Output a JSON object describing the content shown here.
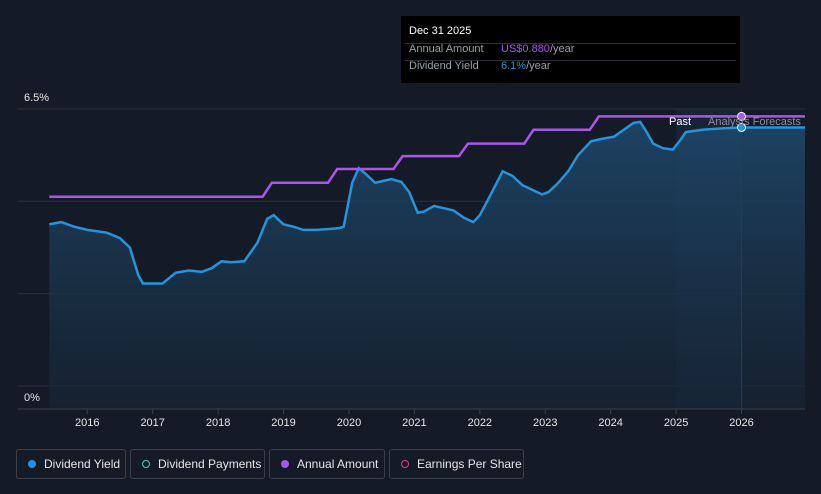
{
  "chart_data": {
    "type": "line",
    "y_ticks": [
      "6.5%",
      "0%"
    ],
    "ylim": [
      0,
      6.5
    ],
    "x_ticks": [
      "2016",
      "2017",
      "2018",
      "2019",
      "2020",
      "2021",
      "2022",
      "2023",
      "2024",
      "2025",
      "2026"
    ],
    "xlim": [
      2015.4,
      2026.97
    ],
    "region_labels": {
      "past": "Past",
      "forecast": "Analysts Forecasts"
    },
    "series": [
      {
        "name": "Dividend Yield",
        "color": "#2394df",
        "points": [
          [
            2015.42,
            4.0
          ],
          [
            2015.6,
            4.05
          ],
          [
            2015.8,
            3.95
          ],
          [
            2016.0,
            3.88
          ],
          [
            2016.3,
            3.82
          ],
          [
            2016.5,
            3.7
          ],
          [
            2016.65,
            3.5
          ],
          [
            2016.78,
            2.9
          ],
          [
            2016.85,
            2.72
          ],
          [
            2017.0,
            2.72
          ],
          [
            2017.15,
            2.72
          ],
          [
            2017.35,
            2.95
          ],
          [
            2017.55,
            3.0
          ],
          [
            2017.75,
            2.97
          ],
          [
            2017.9,
            3.05
          ],
          [
            2018.05,
            3.2
          ],
          [
            2018.2,
            3.18
          ],
          [
            2018.4,
            3.2
          ],
          [
            2018.6,
            3.6
          ],
          [
            2018.75,
            4.12
          ],
          [
            2018.85,
            4.2
          ],
          [
            2019.0,
            4.0
          ],
          [
            2019.15,
            3.95
          ],
          [
            2019.3,
            3.88
          ],
          [
            2019.5,
            3.88
          ],
          [
            2019.7,
            3.9
          ],
          [
            2019.85,
            3.92
          ],
          [
            2019.92,
            3.95
          ],
          [
            2020.05,
            4.9
          ],
          [
            2020.15,
            5.22
          ],
          [
            2020.25,
            5.1
          ],
          [
            2020.4,
            4.9
          ],
          [
            2020.55,
            4.95
          ],
          [
            2020.65,
            4.98
          ],
          [
            2020.8,
            4.92
          ],
          [
            2020.92,
            4.7
          ],
          [
            2021.05,
            4.25
          ],
          [
            2021.15,
            4.28
          ],
          [
            2021.3,
            4.4
          ],
          [
            2021.45,
            4.35
          ],
          [
            2021.6,
            4.3
          ],
          [
            2021.75,
            4.15
          ],
          [
            2021.9,
            4.05
          ],
          [
            2022.0,
            4.2
          ],
          [
            2022.15,
            4.6
          ],
          [
            2022.35,
            5.15
          ],
          [
            2022.5,
            5.05
          ],
          [
            2022.65,
            4.85
          ],
          [
            2022.8,
            4.75
          ],
          [
            2022.95,
            4.65
          ],
          [
            2023.05,
            4.7
          ],
          [
            2023.2,
            4.9
          ],
          [
            2023.35,
            5.15
          ],
          [
            2023.5,
            5.5
          ],
          [
            2023.7,
            5.8
          ],
          [
            2023.85,
            5.85
          ],
          [
            2024.05,
            5.9
          ],
          [
            2024.2,
            6.05
          ],
          [
            2024.35,
            6.2
          ],
          [
            2024.45,
            6.22
          ],
          [
            2024.55,
            6.0
          ],
          [
            2024.65,
            5.75
          ],
          [
            2024.8,
            5.65
          ],
          [
            2024.95,
            5.62
          ],
          [
            2025.05,
            5.8
          ],
          [
            2025.15,
            6.0
          ],
          [
            2025.4,
            6.05
          ],
          [
            2025.7,
            6.08
          ],
          [
            2026.0,
            6.1
          ],
          [
            2026.97,
            6.1
          ]
        ]
      },
      {
        "name": "Annual Amount",
        "color": "#a955ee",
        "points": [
          [
            2015.42,
            4.6
          ],
          [
            2018.68,
            4.6
          ],
          [
            2018.82,
            4.9
          ],
          [
            2019.68,
            4.9
          ],
          [
            2019.82,
            5.2
          ],
          [
            2020.68,
            5.2
          ],
          [
            2020.82,
            5.48
          ],
          [
            2021.68,
            5.48
          ],
          [
            2021.82,
            5.75
          ],
          [
            2022.68,
            5.75
          ],
          [
            2022.82,
            6.05
          ],
          [
            2023.68,
            6.05
          ],
          [
            2023.82,
            6.34
          ],
          [
            2026.97,
            6.34
          ]
        ]
      }
    ],
    "highlight_point": {
      "x": 2026.0,
      "dividend_yield": 6.1,
      "annual_amount": 6.34
    }
  },
  "tooltip": {
    "date": "Dec 31 2025",
    "annual_amount_label": "Annual Amount",
    "annual_amount_value": "US$0.880",
    "annual_amount_unit": "/year",
    "dividend_yield_label": "Dividend Yield",
    "dividend_yield_value": "6.1%",
    "dividend_yield_unit": "/year"
  },
  "legend": [
    {
      "label": "Dividend Yield",
      "color": "#2394df",
      "style": "filled"
    },
    {
      "label": "Dividend Payments",
      "color": "#4fd1c5",
      "style": "hollow"
    },
    {
      "label": "Annual Amount",
      "color": "#a955ee",
      "style": "filled"
    },
    {
      "label": "Earnings Per Share",
      "color": "#d6457a",
      "style": "hollow"
    }
  ]
}
